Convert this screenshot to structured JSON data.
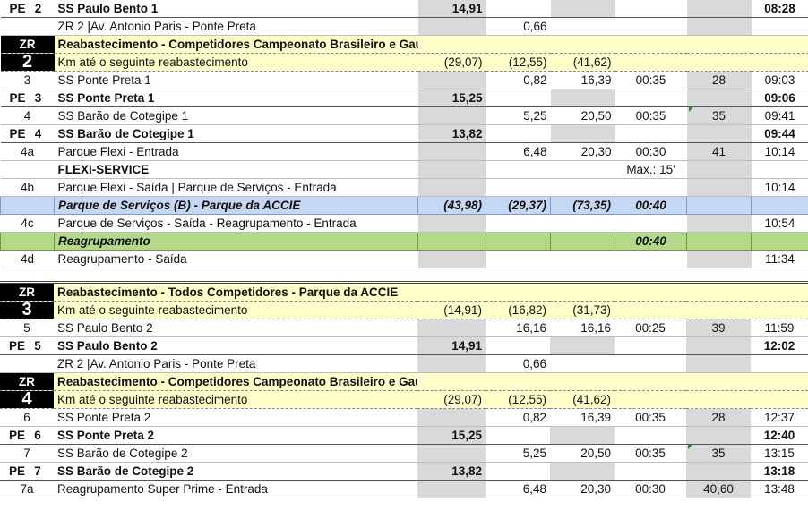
{
  "rows_a": [
    {
      "type": "pe",
      "pe": "PE",
      "n": "2",
      "label": "SS Paulo Bento 1",
      "c3": "14,91",
      "c8": "08:28"
    },
    {
      "type": "plain",
      "label": "ZR 2 |Av. Antonio Paris - Ponte Preta",
      "c4": "0,66"
    },
    {
      "type": "zr_top",
      "zr": "ZR",
      "label": "Reabastecimento - Competidores Campeonato Brasileiro e Gaúcho"
    },
    {
      "type": "zr_bot",
      "num": "2",
      "label": "Km até o seguinte reabastecimento",
      "c3": "(29,07)",
      "c4": "(12,55)",
      "c5": "(41,62)"
    },
    {
      "type": "plain",
      "c0": "3",
      "label": "SS Ponte Preta 1",
      "c4": "0,82",
      "c5": "16,39",
      "c6": "00:35",
      "c7": "28",
      "c8": "09:03"
    },
    {
      "type": "pe",
      "pe": "PE",
      "n": "3",
      "label": "SS Ponte Preta 1",
      "c3": "15,25",
      "c8": "09:06"
    },
    {
      "type": "plain",
      "c0": "4",
      "label": "SS Barão de Cotegipe 1",
      "c4": "5,25",
      "c5": "20,50",
      "c6": "00:35",
      "c7": "35",
      "c8": "09:41",
      "flag": true
    },
    {
      "type": "pe",
      "pe": "PE",
      "n": "4",
      "label": "SS Barão de Cotegipe 1",
      "c3": "13,82",
      "c8": "09:44"
    },
    {
      "type": "plain",
      "c0": "4a",
      "label": "Parque Flexi - Entrada",
      "c4": "6,48",
      "c5": "20,30",
      "c6": "00:30",
      "c7": "41",
      "c8": "10:14"
    },
    {
      "type": "bold",
      "label": "FLEXI-SERVICE",
      "c6": "Max.: 15'"
    },
    {
      "type": "plain",
      "c0": "4b",
      "label": "Parque Flexi - Saída  | Parque de Serviços - Entrada",
      "c8": "10:14"
    },
    {
      "type": "blue",
      "label": "Parque de Serviços (B) - Parque da ACCIE",
      "c3": "(43,98)",
      "c4": "(29,37)",
      "c5": "(73,35)",
      "c6": "00:40"
    },
    {
      "type": "plain",
      "c0": "4c",
      "label": "Parque de Serviços - Saída - Reagrupamento - Entrada",
      "c8": "10:54"
    },
    {
      "type": "green",
      "label": "Reagrupamento",
      "c6": "00:40"
    },
    {
      "type": "plain",
      "c0": "4d",
      "label": "Reagrupamento - Saída",
      "c8": "11:34"
    }
  ],
  "rows_b": [
    {
      "type": "zr_top",
      "zr": "ZR",
      "label": "Reabastecimento - Todos Competidores - Parque da ACCIE"
    },
    {
      "type": "zr_bot",
      "num": "3",
      "label": "Km até o seguinte reabastecimento",
      "c3": "(14,91)",
      "c4": "(16,82)",
      "c5": "(31,73)"
    },
    {
      "type": "plain",
      "c0": "5",
      "label": "SS Paulo Bento  2",
      "c4": "16,16",
      "c5": "16,16",
      "c6": "00:25",
      "c7": "39",
      "c8": "11:59"
    },
    {
      "type": "pe",
      "pe": "PE",
      "n": "5",
      "label": "SS Paulo Bento  2",
      "c3": "14,91",
      "c8": "12:02"
    },
    {
      "type": "plain",
      "label": "ZR 2 |Av. Antonio Paris - Ponte Preta",
      "c4": "0,66"
    },
    {
      "type": "zr_top",
      "zr": "ZR",
      "label": "Reabastecimento - Competidores Campeonato Brasileiro e Gaúcho"
    },
    {
      "type": "zr_bot",
      "num": "4",
      "label": "Km até o seguinte reabastecimento",
      "c3": "(29,07)",
      "c4": "(12,55)",
      "c5": "(41,62)"
    },
    {
      "type": "plain",
      "c0": "6",
      "label": "SS Ponte Preta 2",
      "c4": "0,82",
      "c5": "16,39",
      "c6": "00:35",
      "c7": "28",
      "c8": "12:37"
    },
    {
      "type": "pe",
      "pe": "PE",
      "n": "6",
      "label": "SS Ponte Preta 2",
      "c3": "15,25",
      "c8": "12:40"
    },
    {
      "type": "plain",
      "c0": "7",
      "label": "SS Barão de Cotegipe  2",
      "c4": "5,25",
      "c5": "20,50",
      "c6": "00:35",
      "c7": "35",
      "c8": "13:15",
      "flag": true
    },
    {
      "type": "pe",
      "pe": "PE",
      "n": "7",
      "label": "SS Barão de Cotegipe  2",
      "c3": "13,82",
      "c8": "13:18"
    },
    {
      "type": "plain",
      "c0": "7a",
      "label": "Reagrupamento Super Prime - Entrada",
      "c4": "6,48",
      "c5": "20,30",
      "c6": "00:30",
      "c7": "40,60",
      "c8": "13:48"
    }
  ]
}
